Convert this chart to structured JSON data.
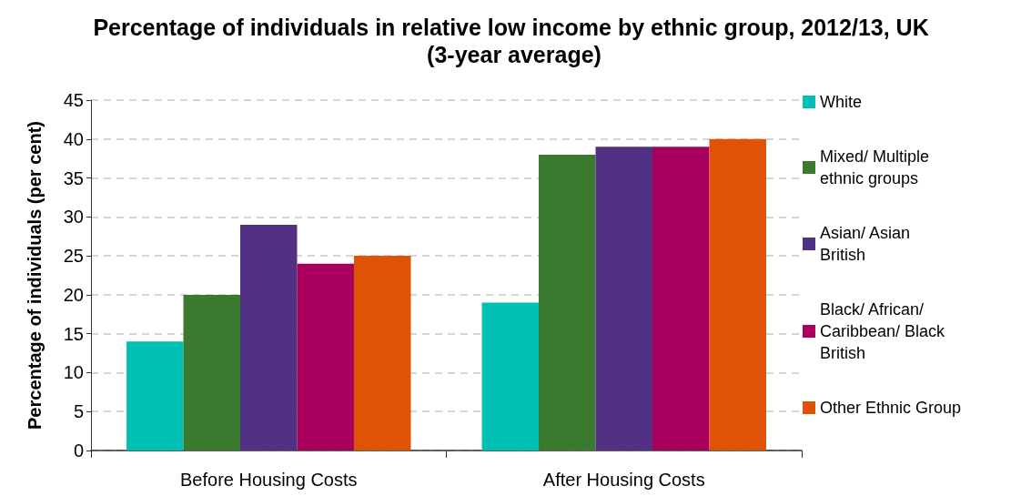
{
  "chart_data": {
    "type": "bar",
    "title": "Percentage of individuals in relative low income by ethnic group, 2012/13, UK (3-year average)",
    "ylabel": "Percentage of individuals (per cent)",
    "categories": [
      "Before Housing Costs",
      "After Housing Costs"
    ],
    "series": [
      {
        "name": "White",
        "color": "#00bfb3",
        "values": [
          14,
          19
        ]
      },
      {
        "name": "Mixed/ Multiple ethnic groups",
        "color": "#3a7a2e",
        "values": [
          20,
          38
        ]
      },
      {
        "name": "Asian/ Asian British",
        "color": "#513184",
        "values": [
          29,
          39
        ]
      },
      {
        "name": "Black/ African/ Caribbean/ Black British",
        "color": "#a8005c",
        "values": [
          24,
          39
        ]
      },
      {
        "name": "Other Ethnic Group",
        "color": "#e05206",
        "values": [
          25,
          40
        ]
      }
    ],
    "ylim": [
      0,
      45
    ],
    "yticks": [
      0,
      5,
      10,
      15,
      20,
      25,
      30,
      35,
      40,
      45
    ],
    "grid": "y",
    "legend": "right"
  }
}
